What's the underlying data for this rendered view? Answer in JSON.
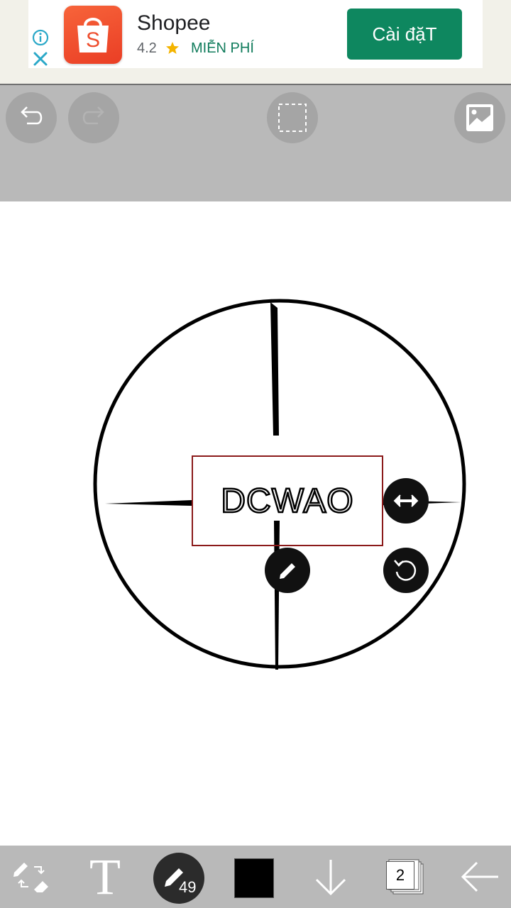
{
  "ad": {
    "app_name": "Shopee",
    "rating": "4.2",
    "price": "MIỄN PHÍ",
    "install_label": "Cài đặT",
    "colors": {
      "install": "#0e875f",
      "price": "#0f7b5b",
      "icon": "#ee4d2d"
    },
    "icons": [
      "info-icon",
      "close-icon",
      "shopee-bag-icon",
      "star-icon"
    ]
  },
  "top_toolbar": {
    "buttons": [
      "undo-icon",
      "redo-icon",
      "selection-icon",
      "image-icon"
    ]
  },
  "canvas": {
    "text_layer": "DCWAO",
    "handles": [
      "resize-horizontal-icon",
      "edit-pencil-icon",
      "rotate-icon"
    ]
  },
  "bottom_toolbar": {
    "pen_size": "49",
    "text_tool_label": "T",
    "layer_count": "2",
    "color": "#000000",
    "icons": [
      "eraser-swap-icon",
      "text-icon",
      "pen-icon",
      "color-swatch",
      "download-arrow-icon",
      "layers-icon",
      "back-arrow-icon"
    ]
  }
}
